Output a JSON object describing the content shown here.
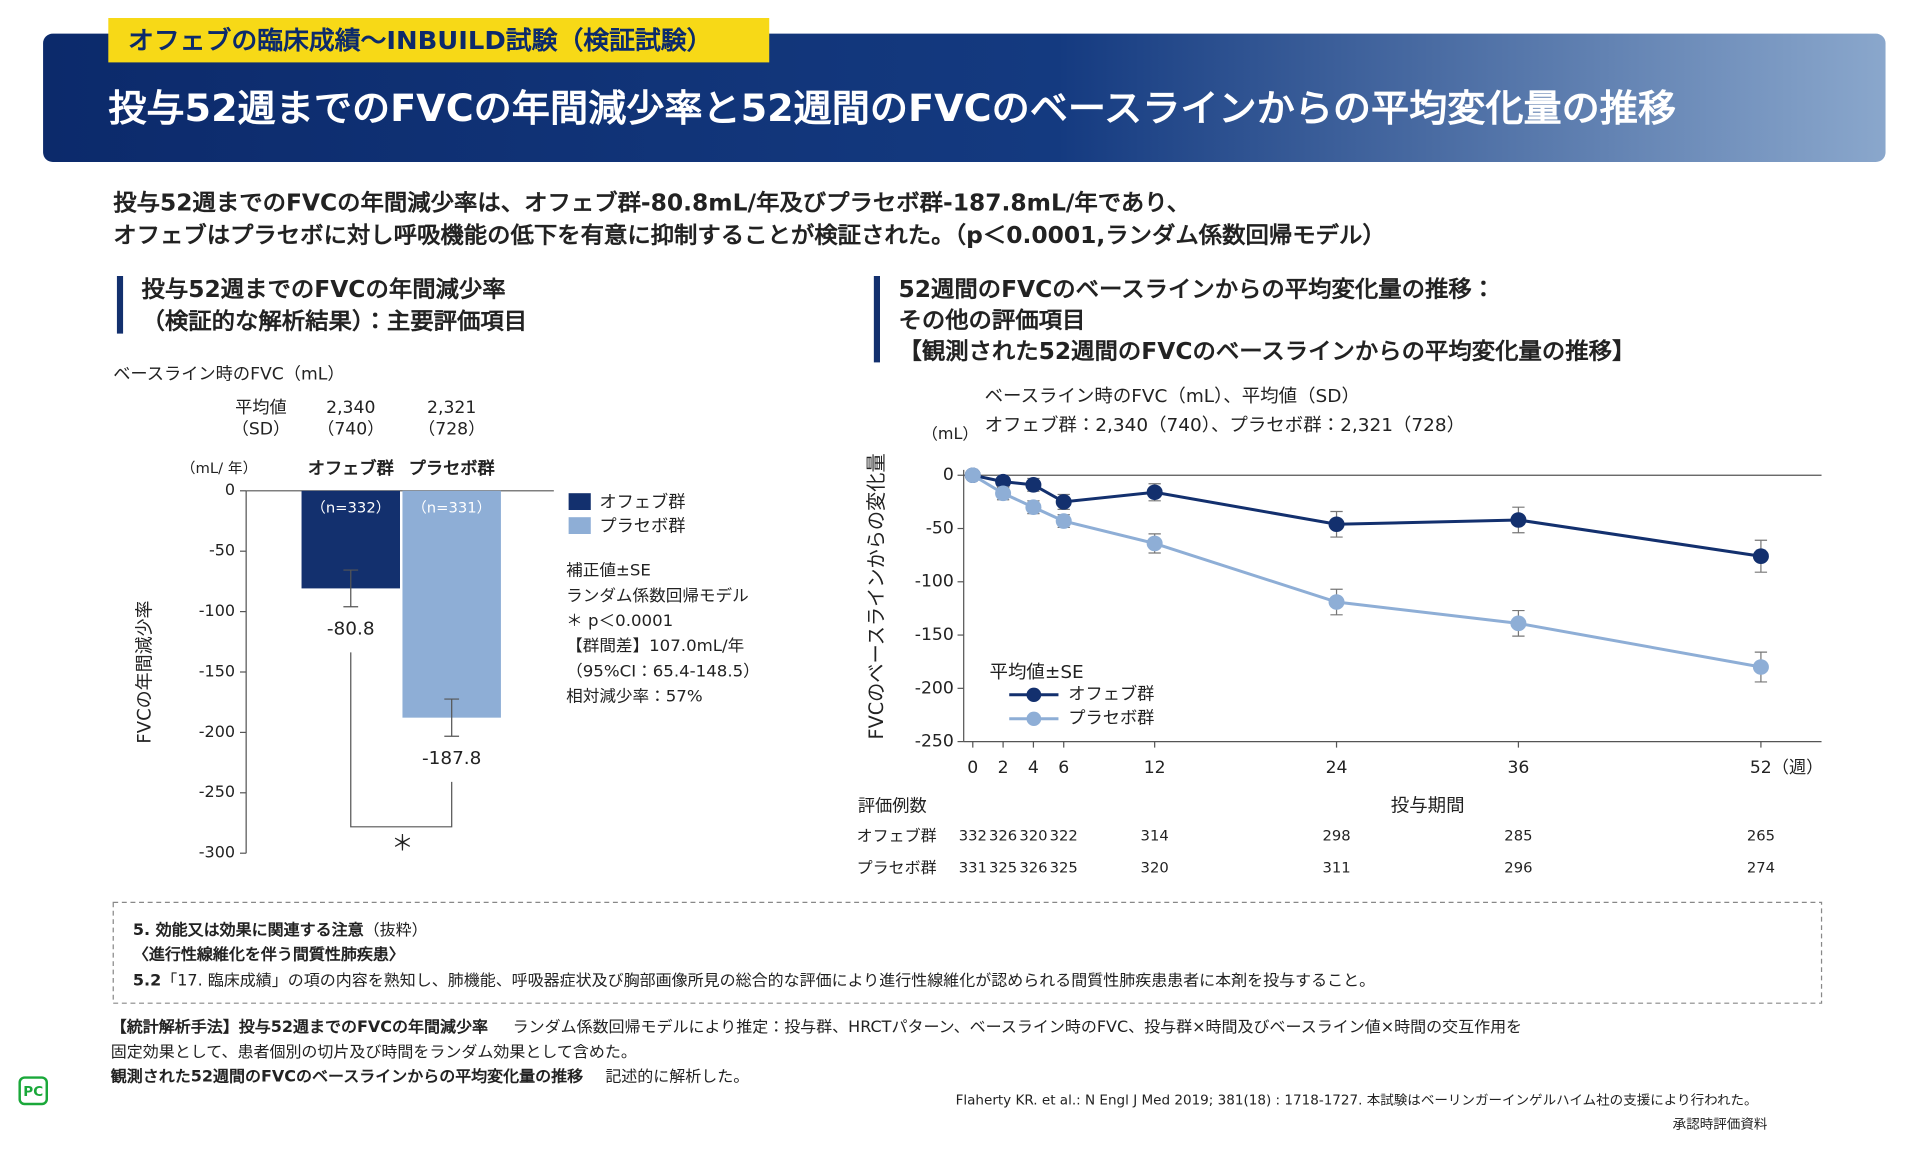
{
  "header": {
    "tag": "オフェブの臨床成績〜INBUILD試験（検証試験）",
    "title": "投与52週までのFVCの年間減少率と52週間のFVCのベースラインからの平均変化量の推移"
  },
  "summary": [
    "投与52週までのFVCの年間減少率は、オフェブ群-80.8mL/年及びプラセボ群-187.8mL/年であり、",
    "オフェブはプラセボに対し呼吸機能の低下を有意に抑制することが検証された。（p＜0.0001,ランダム係数回帰モデル）"
  ],
  "chart_data": [
    {
      "type": "bar",
      "heading": [
        "投与52週までのFVCの年間減少率",
        "（検証的な解析結果）：主要評価項目"
      ],
      "baseline_title": "ベースライン時のFVC（mL）",
      "stat_labels": [
        "平均値",
        "（SD）"
      ],
      "baseline_means": [
        "2,340",
        "2,321"
      ],
      "baseline_sds": [
        "（740）",
        "（728）"
      ],
      "y_unit": "（mL/ 年）",
      "ylabel": "FVCの年間減少率",
      "categories": [
        "オフェブ群",
        "プラセボ群"
      ],
      "colors": [
        "#13306e",
        "#8eaed6"
      ],
      "n_labels": [
        "（n=332）",
        "（n=331）"
      ],
      "values": [
        -80.8,
        -187.8
      ],
      "errors": [
        15.2,
        15.4
      ],
      "ylim": [
        -300,
        0
      ],
      "yticks": [
        0,
        -50,
        -100,
        -150,
        -200,
        -250,
        -300
      ],
      "notes": [
        "補正値±SE",
        "ランダム係数回帰モデル",
        "＊ p＜0.0001",
        "【群間差】107.0mL/年",
        "（95%CI：65.4-148.5）",
        "相対減少率：57%"
      ],
      "significance": "＊"
    },
    {
      "type": "line",
      "heading": [
        "52週間のFVCのベースラインからの平均変化量の推移：",
        "その他の評価項目",
        "【観測された52週間のFVCのベースラインからの平均変化量の推移】"
      ],
      "caption": [
        "ベースライン時のFVC（mL）、平均値（SD）",
        "オフェブ群：2,340（740）、プラセボ群：2,321（728）"
      ],
      "y_unit": "（mL）",
      "ylabel": "FVCのベースラインからの変化量",
      "xlabel": "投与期間",
      "legend_title": "平均値±SE",
      "x": [
        0,
        2,
        4,
        6,
        12,
        24,
        36,
        52
      ],
      "xlim": [
        -0.6,
        56
      ],
      "xticks": [
        0,
        2,
        4,
        6,
        12,
        24,
        36,
        {
          "value": 52,
          "label": "52（週）"
        }
      ],
      "ylim": [
        -250,
        5
      ],
      "yticks": [
        0,
        -50,
        -100,
        -150,
        -200,
        -250
      ],
      "series": [
        {
          "name": "オフェブ群",
          "color": "#13306e",
          "values": [
            0,
            -6,
            -9,
            -25,
            -16,
            -46,
            -42,
            -76
          ],
          "errors": [
            0,
            6,
            6,
            7,
            8,
            12,
            12,
            15
          ]
        },
        {
          "name": "プラセボ群",
          "color": "#8eaed6",
          "values": [
            0,
            -17,
            -30,
            -43,
            -64,
            -119,
            -139,
            -180
          ],
          "errors": [
            0,
            6,
            6,
            6,
            9,
            12,
            12,
            14
          ]
        }
      ],
      "n_table": {
        "title": "評価例数",
        "rows": [
          {
            "name": "オフェブ群",
            "counts": [
              332,
              326,
              320,
              322,
              314,
              298,
              285,
              265
            ]
          },
          {
            "name": "プラセボ群",
            "counts": [
              331,
              325,
              326,
              325,
              320,
              311,
              296,
              274
            ]
          }
        ]
      }
    }
  ],
  "notes_box": {
    "heading": "5. 効能又は効果に関連する注意",
    "heading_suffix": "（抜粋）",
    "subheading": "〈進行性線維化を伴う間質性肺疾患〉",
    "item_no": "5.2",
    "item_text": "「17. 臨床成績」の項の内容を熟知し、肺機能、呼吸器症状及び胸部画像所見の総合的な評価により進行性線維化が認められる間質性肺疾患患者に本剤を投与すること。"
  },
  "methods": {
    "label1": "【統計解析手法】投与52週までのFVCの年間減少率",
    "text1": "ランダム係数回帰モデルにより推定：投与群、HRCTパターン、ベースライン時のFVC、投与群×時間及びベースライン値×時間の交互作用を",
    "text2": "固定効果として、患者個別の切片及び時間をランダム効果として含めた。",
    "label2": "観測された52週間のFVCのベースラインからの平均変化量の推移",
    "text3": "記述的に解析した。"
  },
  "footer": {
    "logo": "PC",
    "citation": "Flaherty KR. et al.: N Engl J Med 2019; 381(18) : 1718-1727. 本試験はベーリンガーインゲルハイム社の支援により行われた。",
    "source": "承認時評価資料"
  }
}
